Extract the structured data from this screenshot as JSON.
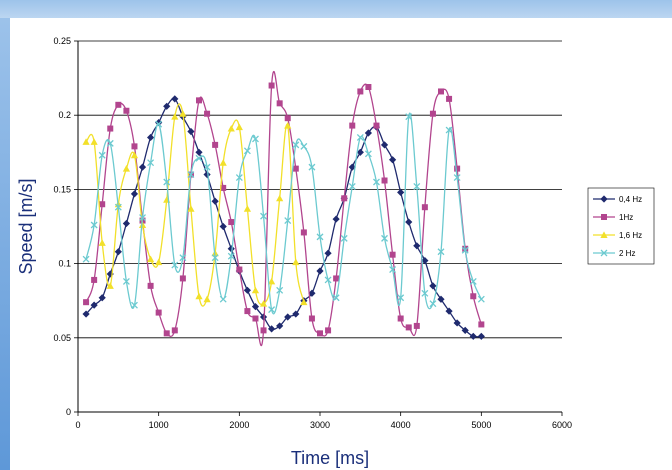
{
  "chart_data": {
    "type": "line",
    "title": "",
    "xlabel": "Time [ms]",
    "ylabel": "Speed [m/s]",
    "xlim": [
      0,
      6000
    ],
    "ylim": [
      0,
      0.25
    ],
    "xticks": [
      "0",
      "1000",
      "2000",
      "3000",
      "4000",
      "5000",
      "6000"
    ],
    "yticks": [
      "0",
      "0.05",
      "0.1",
      "0.15",
      "0.2",
      "0.25"
    ],
    "grid": "horizontal major gridlines",
    "legend_position": "right",
    "series": [
      {
        "name": "0,4 Hz",
        "color": "#1f2a6e",
        "marker": "diamond",
        "x": [
          100,
          200,
          300,
          400,
          500,
          600,
          700,
          800,
          900,
          1000,
          1100,
          1200,
          1300,
          1400,
          1500,
          1600,
          1700,
          1800,
          1900,
          2000,
          2100,
          2200,
          2300,
          2400,
          2500,
          2600,
          2700,
          2800,
          2900,
          3000,
          3100,
          3200,
          3300,
          3400,
          3500,
          3600,
          3700,
          3800,
          3900,
          4000,
          4100,
          4200,
          4300,
          4400,
          4500,
          4600,
          4700,
          4800,
          4900,
          5000
        ],
        "y": [
          0.066,
          0.072,
          0.077,
          0.093,
          0.108,
          0.127,
          0.147,
          0.165,
          0.185,
          0.195,
          0.206,
          0.211,
          0.199,
          0.189,
          0.175,
          0.16,
          0.142,
          0.125,
          0.11,
          0.095,
          0.082,
          0.071,
          0.064,
          0.056,
          0.058,
          0.064,
          0.066,
          0.075,
          0.08,
          0.095,
          0.107,
          0.13,
          0.144,
          0.165,
          0.175,
          0.188,
          0.192,
          0.18,
          0.17,
          0.148,
          0.128,
          0.112,
          0.102,
          0.085,
          0.076,
          0.068,
          0.06,
          0.055,
          0.051,
          0.051
        ]
      },
      {
        "name": "1Hz",
        "color": "#b2458e",
        "marker": "square",
        "x": [
          100,
          200,
          300,
          400,
          500,
          600,
          700,
          800,
          900,
          1000,
          1100,
          1200,
          1300,
          1400,
          1500,
          1600,
          1700,
          1800,
          1900,
          2000,
          2100,
          2200,
          2300,
          2400,
          2500,
          2600,
          2700,
          2800,
          2900,
          3000,
          3100,
          3200,
          3300,
          3400,
          3500,
          3600,
          3700,
          3800,
          3900,
          4000,
          4100,
          4200,
          4300,
          4400,
          4500,
          4600,
          4700,
          4800,
          4900,
          5000
        ],
        "y": [
          0.074,
          0.089,
          0.14,
          0.191,
          0.207,
          0.203,
          0.179,
          0.129,
          0.085,
          0.067,
          0.053,
          0.055,
          0.09,
          0.16,
          0.21,
          0.201,
          0.18,
          0.151,
          0.128,
          0.096,
          0.068,
          0.063,
          0.055,
          0.22,
          0.208,
          0.198,
          0.164,
          0.121,
          0.063,
          0.053,
          0.055,
          0.09,
          0.144,
          0.193,
          0.216,
          0.219,
          0.193,
          0.156,
          0.106,
          0.063,
          0.057,
          0.058,
          0.138,
          0.201,
          0.216,
          0.211,
          0.164,
          0.11,
          0.078,
          0.059
        ]
      },
      {
        "name": "1,6 Hz",
        "color": "#f2e02a",
        "marker": "triangle",
        "x": [
          100,
          200,
          300,
          400,
          500,
          600,
          700,
          800,
          900,
          1000,
          1100,
          1200,
          1300,
          1400,
          1500,
          1600,
          1700,
          1800,
          1900,
          2000,
          2100,
          2200,
          2300,
          2400,
          2500,
          2600,
          2700,
          2800
        ],
        "y": [
          0.182,
          0.182,
          0.114,
          0.085,
          0.14,
          0.164,
          0.173,
          0.126,
          0.103,
          0.101,
          0.143,
          0.199,
          0.201,
          0.137,
          0.078,
          0.076,
          0.107,
          0.168,
          0.191,
          0.192,
          0.137,
          0.082,
          0.073,
          0.088,
          0.144,
          0.193,
          0.101,
          0.074
        ]
      },
      {
        "name": "2 Hz",
        "color": "#6ccad0",
        "marker": "x",
        "x": [
          100,
          200,
          300,
          400,
          500,
          600,
          700,
          800,
          900,
          1000,
          1100,
          1200,
          1300,
          1400,
          1500,
          1600,
          1700,
          1800,
          1900,
          2000,
          2100,
          2200,
          2300,
          2400,
          2500,
          2600,
          2700,
          2800,
          2900,
          3000,
          3100,
          3200,
          3300,
          3400,
          3500,
          3600,
          3700,
          3800,
          3900,
          4000,
          4100,
          4200,
          4300,
          4400,
          4500,
          4600,
          4700,
          4800,
          4900,
          5000
        ],
        "y": [
          0.103,
          0.126,
          0.173,
          0.181,
          0.138,
          0.088,
          0.072,
          0.131,
          0.168,
          0.194,
          0.155,
          0.099,
          0.104,
          0.16,
          0.171,
          0.165,
          0.104,
          0.076,
          0.105,
          0.158,
          0.176,
          0.184,
          0.132,
          0.069,
          0.082,
          0.129,
          0.18,
          0.179,
          0.165,
          0.118,
          0.089,
          0.077,
          0.117,
          0.152,
          0.185,
          0.174,
          0.155,
          0.117,
          0.096,
          0.077,
          0.199,
          0.152,
          0.08,
          0.073,
          0.108,
          0.19,
          0.158,
          0.109,
          0.088,
          0.076
        ]
      }
    ]
  }
}
